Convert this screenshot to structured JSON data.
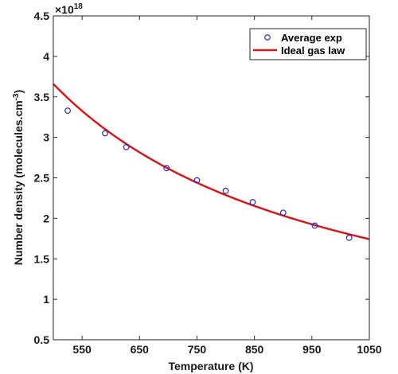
{
  "chart_data": {
    "type": "scatter",
    "xlabel": "Temperature (K)",
    "ylabel_main": "Number density (molecules.cm",
    "ylabel_sup": "-3",
    "ylabel_end": ")",
    "exponent_prefix": "×10",
    "exponent_power": "18",
    "xlim": [
      500,
      1050
    ],
    "ylim": [
      0.5,
      4.5
    ],
    "x_ticks": [
      550,
      650,
      750,
      850,
      950,
      1050
    ],
    "y_ticks": [
      0.5,
      1,
      1.5,
      2,
      2.5,
      3,
      3.5,
      4,
      4.5
    ],
    "y_tick_labels": [
      "0.5",
      "1",
      "1.5",
      "2",
      "2.5",
      "3",
      "3.5",
      "4",
      "4.5"
    ],
    "grid": false,
    "legend_position": "top-right",
    "series": [
      {
        "name": "Average exp",
        "kind": "markers",
        "marker": "circle-open",
        "color": "#2b2bb8",
        "x": [
          525,
          590,
          627,
          697,
          750,
          800,
          847,
          900,
          955,
          1015
        ],
        "y": [
          3.33,
          3.05,
          2.88,
          2.62,
          2.47,
          2.34,
          2.2,
          2.07,
          1.91,
          1.76
        ]
      },
      {
        "name": "Ideal gas law",
        "kind": "line",
        "color": "#d01c1c",
        "x": [
          500,
          1050
        ],
        "y": [
          3.66,
          1.74
        ]
      }
    ]
  }
}
